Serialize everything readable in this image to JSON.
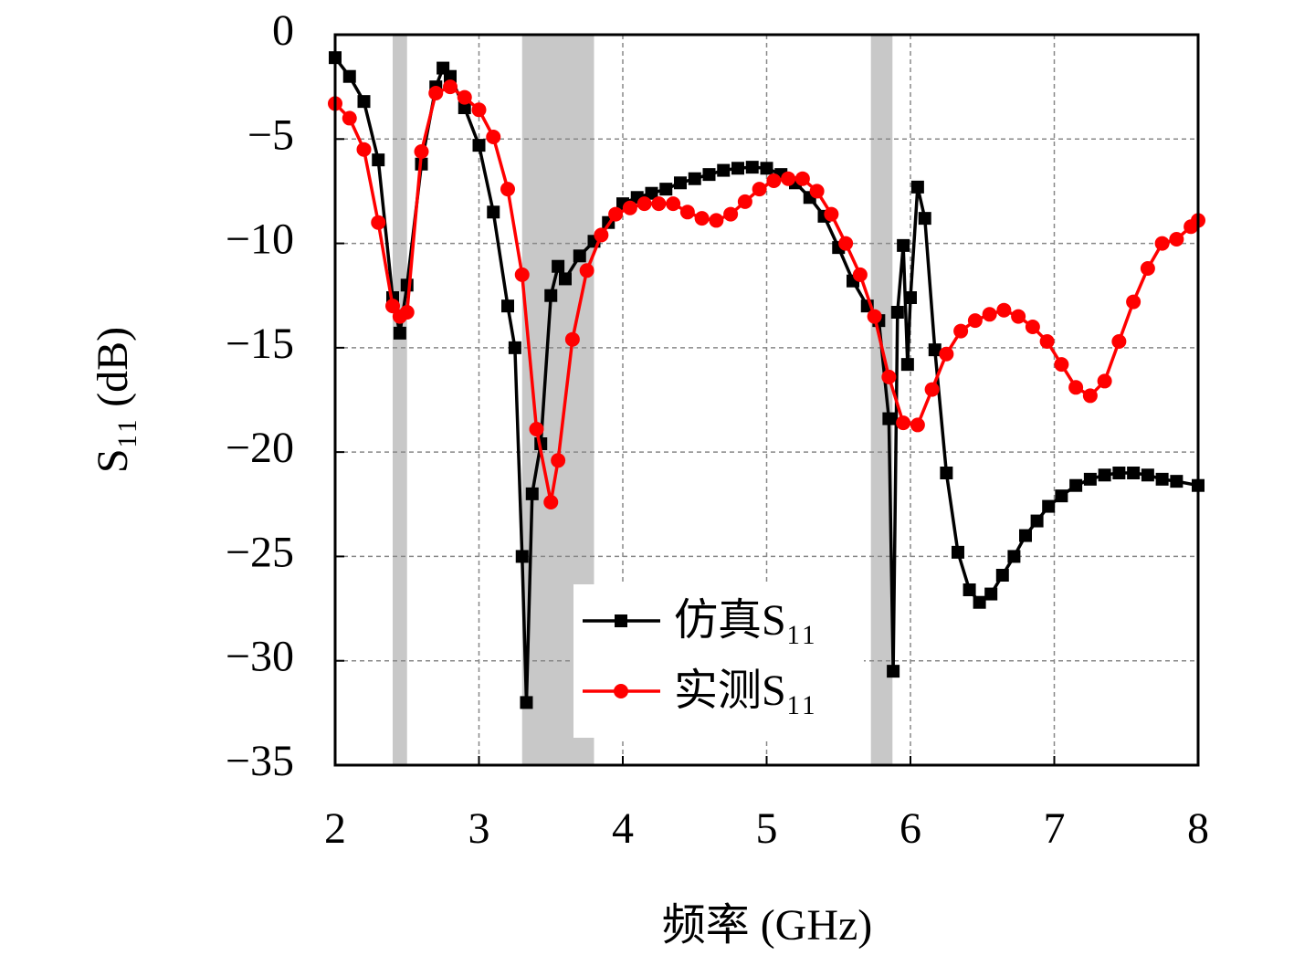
{
  "chart_data": {
    "type": "line",
    "x_label": "频率 (GHz)",
    "y_label": "S₁₁ (dB)",
    "xlim": [
      2,
      8
    ],
    "xticks": [
      2,
      3,
      4,
      5,
      6,
      7,
      8
    ],
    "ylim": [
      -35,
      0
    ],
    "yticks": [
      {
        "value": -35,
        "label": "−35"
      },
      {
        "value": -30,
        "label": "−30"
      },
      {
        "value": -25,
        "label": "−25"
      },
      {
        "value": -20,
        "label": "−20"
      },
      {
        "value": -15,
        "label": "−15"
      },
      {
        "value": -10,
        "label": "−10"
      },
      {
        "value": -5,
        "label": "−5"
      },
      0
    ],
    "grid": true,
    "legend": "lower center",
    "shaded_bands": [
      [
        2.4,
        2.5
      ],
      [
        3.3,
        3.8
      ],
      [
        5.725,
        5.875
      ]
    ],
    "band_color": "#c8c8c8",
    "series": [
      {
        "name": "仿真S₁₁",
        "color": "#000000",
        "marker": "square",
        "x": [
          2.0,
          2.1,
          2.2,
          2.3,
          2.4,
          2.45,
          2.5,
          2.6,
          2.7,
          2.75,
          2.8,
          2.9,
          3.0,
          3.1,
          3.2,
          3.25,
          3.3,
          3.33,
          3.37,
          3.43,
          3.5,
          3.55,
          3.6,
          3.7,
          3.8,
          3.9,
          4.0,
          4.1,
          4.2,
          4.3,
          4.4,
          4.5,
          4.6,
          4.7,
          4.8,
          4.9,
          5.0,
          5.1,
          5.2,
          5.3,
          5.4,
          5.5,
          5.6,
          5.7,
          5.78,
          5.85,
          5.88,
          5.91,
          5.95,
          5.98,
          6.0,
          6.05,
          6.1,
          6.17,
          6.25,
          6.33,
          6.41,
          6.48,
          6.56,
          6.64,
          6.72,
          6.8,
          6.88,
          6.96,
          7.05,
          7.15,
          7.25,
          7.35,
          7.45,
          7.55,
          7.65,
          7.75,
          7.85,
          8.0
        ],
        "values": [
          -1.1,
          -2.0,
          -3.2,
          -6.0,
          -12.6,
          -14.3,
          -12.0,
          -6.2,
          -2.5,
          -1.6,
          -2.0,
          -3.5,
          -5.3,
          -8.5,
          -13.0,
          -15.0,
          -25.0,
          -32.0,
          -22.0,
          -19.6,
          -12.5,
          -11.1,
          -11.7,
          -10.6,
          -9.9,
          -9.0,
          -8.1,
          -7.8,
          -7.6,
          -7.4,
          -7.1,
          -6.9,
          -6.7,
          -6.5,
          -6.4,
          -6.35,
          -6.4,
          -6.7,
          -7.1,
          -7.8,
          -8.7,
          -10.2,
          -11.8,
          -13.0,
          -13.7,
          -18.4,
          -30.5,
          -13.3,
          -10.1,
          -15.8,
          -12.6,
          -7.3,
          -8.8,
          -15.1,
          -21.0,
          -24.8,
          -26.6,
          -27.2,
          -26.8,
          -25.9,
          -25.0,
          -24.0,
          -23.3,
          -22.6,
          -22.1,
          -21.6,
          -21.3,
          -21.1,
          -21.0,
          -21.0,
          -21.1,
          -21.3,
          -21.4,
          -21.6
        ]
      },
      {
        "name": "实测S₁₁",
        "color": "#ff0000",
        "marker": "circle",
        "x": [
          2.0,
          2.1,
          2.2,
          2.3,
          2.4,
          2.45,
          2.5,
          2.6,
          2.7,
          2.8,
          2.9,
          3.0,
          3.1,
          3.2,
          3.3,
          3.4,
          3.5,
          3.55,
          3.65,
          3.75,
          3.85,
          3.95,
          4.05,
          4.15,
          4.25,
          4.35,
          4.45,
          4.55,
          4.65,
          4.75,
          4.85,
          4.95,
          5.05,
          5.15,
          5.25,
          5.35,
          5.45,
          5.55,
          5.65,
          5.75,
          5.85,
          5.95,
          6.05,
          6.15,
          6.25,
          6.35,
          6.45,
          6.55,
          6.65,
          6.75,
          6.85,
          6.95,
          7.05,
          7.15,
          7.25,
          7.35,
          7.45,
          7.55,
          7.65,
          7.75,
          7.85,
          7.95,
          8.0
        ],
        "values": [
          -3.3,
          -4.0,
          -5.5,
          -9.0,
          -13.0,
          -13.5,
          -13.3,
          -5.6,
          -2.8,
          -2.5,
          -3.0,
          -3.6,
          -4.9,
          -7.4,
          -11.5,
          -18.9,
          -22.4,
          -20.4,
          -14.6,
          -11.3,
          -9.6,
          -8.6,
          -8.3,
          -8.1,
          -8.1,
          -8.1,
          -8.5,
          -8.8,
          -8.9,
          -8.6,
          -8.0,
          -7.4,
          -7.0,
          -6.9,
          -6.9,
          -7.5,
          -8.6,
          -10.0,
          -11.5,
          -13.5,
          -16.4,
          -18.6,
          -18.7,
          -17.0,
          -15.3,
          -14.2,
          -13.7,
          -13.4,
          -13.2,
          -13.5,
          -14.0,
          -14.7,
          -15.8,
          -16.9,
          -17.3,
          -16.6,
          -14.7,
          -12.8,
          -11.2,
          -10.0,
          -9.8,
          -9.2,
          -8.9
        ]
      }
    ]
  }
}
